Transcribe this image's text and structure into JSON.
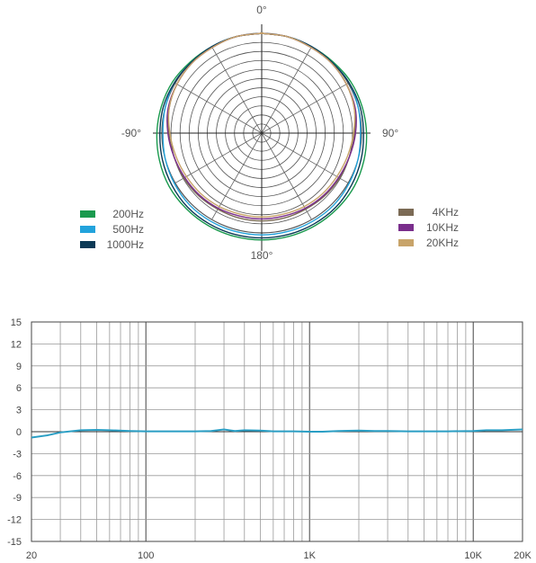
{
  "chart_data": [
    {
      "type": "polar",
      "angle_labels": {
        "top": "0°",
        "left": "-90°",
        "right": "90°",
        "bottom": "180°"
      },
      "legend_left": [
        {
          "name": "200Hz",
          "color": "#1a9a4e"
        },
        {
          "name": "500Hz",
          "color": "#22a3dc"
        },
        {
          "name": "1000Hz",
          "color": "#0c3a56"
        }
      ],
      "legend_right": [
        {
          "name": "4KHz",
          "color": "#7b6a55"
        },
        {
          "name": "10KHz",
          "color": "#7a2e8c"
        },
        {
          "name": "20KHz",
          "color": "#c8a46a"
        }
      ],
      "series": [
        {
          "name": "200Hz",
          "color": "#1a9a4e",
          "r": [
            1.0,
            1.0,
            1.0,
            1.01,
            1.03,
            1.04,
            1.05,
            1.06,
            1.07,
            1.07,
            1.07,
            1.07,
            1.07
          ]
        },
        {
          "name": "500Hz",
          "color": "#22a3dc",
          "r": [
            1.0,
            1.0,
            1.0,
            1.0,
            1.01,
            1.0,
            0.99,
            1.0,
            1.01,
            1.02,
            1.02,
            1.02,
            1.02
          ]
        },
        {
          "name": "1000Hz",
          "color": "#0c3a56",
          "r": [
            1.0,
            1.0,
            1.0,
            1.0,
            1.01,
            1.02,
            1.02,
            1.03,
            1.04,
            1.05,
            1.05,
            1.05,
            1.05
          ]
        },
        {
          "name": "4KHz",
          "color": "#7b6a55",
          "r": [
            1.0,
            1.0,
            0.99,
            0.99,
            0.98,
            0.96,
            0.93,
            0.91,
            0.9,
            0.89,
            0.88,
            0.88,
            0.88
          ]
        },
        {
          "name": "10KHz",
          "color": "#7a2e8c",
          "r": [
            1.0,
            1.0,
            0.99,
            0.99,
            0.98,
            0.97,
            0.94,
            0.91,
            0.89,
            0.88,
            0.87,
            0.86,
            0.86
          ]
        },
        {
          "name": "20KHz",
          "color": "#c8a46a",
          "r": [
            1.0,
            1.0,
            0.99,
            0.99,
            0.98,
            0.96,
            0.92,
            0.89,
            0.87,
            0.86,
            0.85,
            0.84,
            0.84
          ]
        }
      ],
      "angles_deg": [
        0,
        15,
        30,
        45,
        60,
        75,
        90,
        105,
        120,
        135,
        150,
        165,
        180
      ]
    },
    {
      "type": "line",
      "xscale": "log",
      "xlim": [
        20,
        20000
      ],
      "ylim": [
        -15,
        15
      ],
      "yticks": [
        15,
        12,
        9,
        6,
        3,
        0,
        -3,
        -6,
        -9,
        -12,
        -15
      ],
      "xtick_labels": [
        {
          "value": 20,
          "label": "20"
        },
        {
          "value": 100,
          "label": "100"
        },
        {
          "value": 1000,
          "label": "1K"
        },
        {
          "value": 10000,
          "label": "10K"
        },
        {
          "value": 20000,
          "label": "20K"
        }
      ],
      "grid": true,
      "series": [
        {
          "color": "#2a9ec4",
          "x": [
            20,
            25,
            30,
            40,
            50,
            60,
            80,
            100,
            150,
            200,
            250,
            300,
            350,
            400,
            500,
            600,
            800,
            1000,
            1200,
            1500,
            2000,
            2500,
            3000,
            4000,
            5000,
            7000,
            10000,
            12000,
            15000,
            20000
          ],
          "y": [
            -0.8,
            -0.5,
            -0.1,
            0.2,
            0.25,
            0.2,
            0.1,
            0.05,
            0.05,
            0.05,
            0.1,
            0.3,
            0.1,
            0.2,
            0.15,
            0.05,
            0.05,
            0.0,
            0.0,
            0.1,
            0.15,
            0.1,
            0.1,
            0.05,
            0.05,
            0.05,
            0.1,
            0.2,
            0.2,
            0.3
          ]
        }
      ]
    }
  ]
}
